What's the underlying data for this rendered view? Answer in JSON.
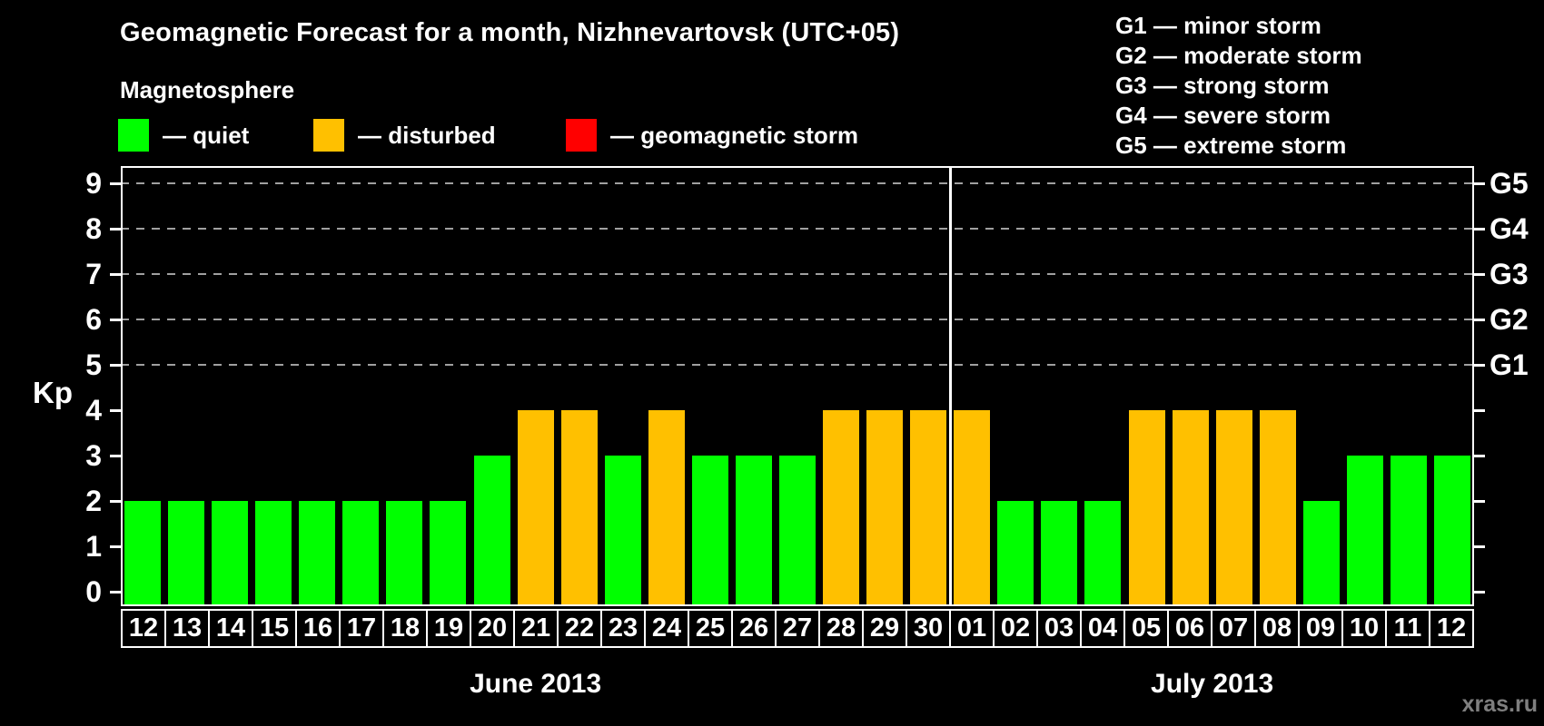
{
  "page": {
    "title": "Geomagnetic Forecast for a month, Nizhnevartovsk (UTC+05)",
    "subtitle": "Magnetosphere",
    "watermark": "xras.ru"
  },
  "colors": {
    "background": "#000000",
    "quiet": "#00ff00",
    "disturbed": "#ffc000",
    "storm": "#ff0000",
    "axis": "#ffffff",
    "grid": "#a0a0a0",
    "watermark": "#7f7f7f"
  },
  "magnetosphere_legend": [
    {
      "state": "quiet",
      "label": "— quiet"
    },
    {
      "state": "disturbed",
      "label": "— disturbed"
    },
    {
      "state": "storm",
      "label": "— geomagnetic storm"
    }
  ],
  "g_scale_legend": [
    "G1 — minor storm",
    "G2 — moderate storm",
    "G3 — strong storm",
    "G4 — severe storm",
    "G5 — extreme storm"
  ],
  "chart_data": {
    "type": "bar",
    "title": "Geomagnetic Forecast for a month, Nizhnevartovsk (UTC+05)",
    "ylabel": "Kp",
    "xlabel": "",
    "ylim": [
      0,
      9.4
    ],
    "yticks": [
      0,
      1,
      2,
      3,
      4,
      5,
      6,
      7,
      8,
      9
    ],
    "gridlines": [
      5,
      6,
      7,
      8,
      9
    ],
    "grid_style": "dashed horizontal, storm levels only",
    "legend_position": "top",
    "right_axis_labels": [
      {
        "label": "G1",
        "kp": 5
      },
      {
        "label": "G2",
        "kp": 6
      },
      {
        "label": "G3",
        "kp": 7
      },
      {
        "label": "G4",
        "kp": 8
      },
      {
        "label": "G5",
        "kp": 9
      }
    ],
    "months": [
      {
        "label": "June 2013",
        "days": [
          {
            "day": "12",
            "kp": 2,
            "state": "quiet"
          },
          {
            "day": "13",
            "kp": 2,
            "state": "quiet"
          },
          {
            "day": "14",
            "kp": 2,
            "state": "quiet"
          },
          {
            "day": "15",
            "kp": 2,
            "state": "quiet"
          },
          {
            "day": "16",
            "kp": 2,
            "state": "quiet"
          },
          {
            "day": "17",
            "kp": 2,
            "state": "quiet"
          },
          {
            "day": "18",
            "kp": 2,
            "state": "quiet"
          },
          {
            "day": "19",
            "kp": 2,
            "state": "quiet"
          },
          {
            "day": "20",
            "kp": 3,
            "state": "quiet"
          },
          {
            "day": "21",
            "kp": 4,
            "state": "disturbed"
          },
          {
            "day": "22",
            "kp": 4,
            "state": "disturbed"
          },
          {
            "day": "23",
            "kp": 3,
            "state": "quiet"
          },
          {
            "day": "24",
            "kp": 4,
            "state": "disturbed"
          },
          {
            "day": "25",
            "kp": 3,
            "state": "quiet"
          },
          {
            "day": "26",
            "kp": 3,
            "state": "quiet"
          },
          {
            "day": "27",
            "kp": 3,
            "state": "quiet"
          },
          {
            "day": "28",
            "kp": 4,
            "state": "disturbed"
          },
          {
            "day": "29",
            "kp": 4,
            "state": "disturbed"
          },
          {
            "day": "30",
            "kp": 4,
            "state": "disturbed"
          }
        ]
      },
      {
        "label": "July 2013",
        "days": [
          {
            "day": "01",
            "kp": 4,
            "state": "disturbed"
          },
          {
            "day": "02",
            "kp": 2,
            "state": "quiet"
          },
          {
            "day": "03",
            "kp": 2,
            "state": "quiet"
          },
          {
            "day": "04",
            "kp": 2,
            "state": "quiet"
          },
          {
            "day": "05",
            "kp": 4,
            "state": "disturbed"
          },
          {
            "day": "06",
            "kp": 4,
            "state": "disturbed"
          },
          {
            "day": "07",
            "kp": 4,
            "state": "disturbed"
          },
          {
            "day": "08",
            "kp": 4,
            "state": "disturbed"
          },
          {
            "day": "09",
            "kp": 2,
            "state": "quiet"
          },
          {
            "day": "10",
            "kp": 3,
            "state": "quiet"
          },
          {
            "day": "11",
            "kp": 3,
            "state": "quiet"
          },
          {
            "day": "12",
            "kp": 3,
            "state": "quiet"
          }
        ]
      }
    ]
  }
}
